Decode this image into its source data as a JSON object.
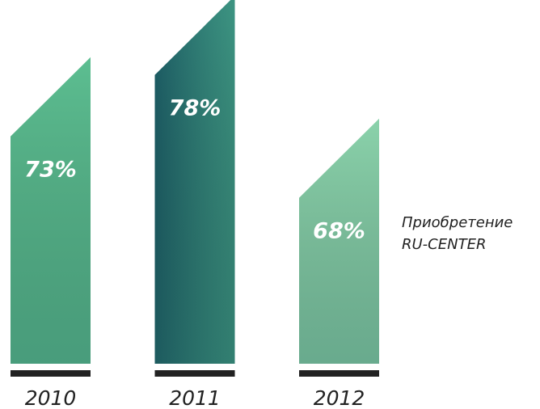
{
  "chart_data": {
    "type": "bar",
    "categories": [
      "2010",
      "2011",
      "2012"
    ],
    "values": [
      73,
      78,
      68
    ],
    "value_labels": [
      "73%",
      "78%",
      "68%"
    ],
    "colors": [
      "#5cbe91",
      "#2b7d79",
      "#8ad2ab"
    ],
    "annotation": "Приобретение RU-CENTER"
  }
}
